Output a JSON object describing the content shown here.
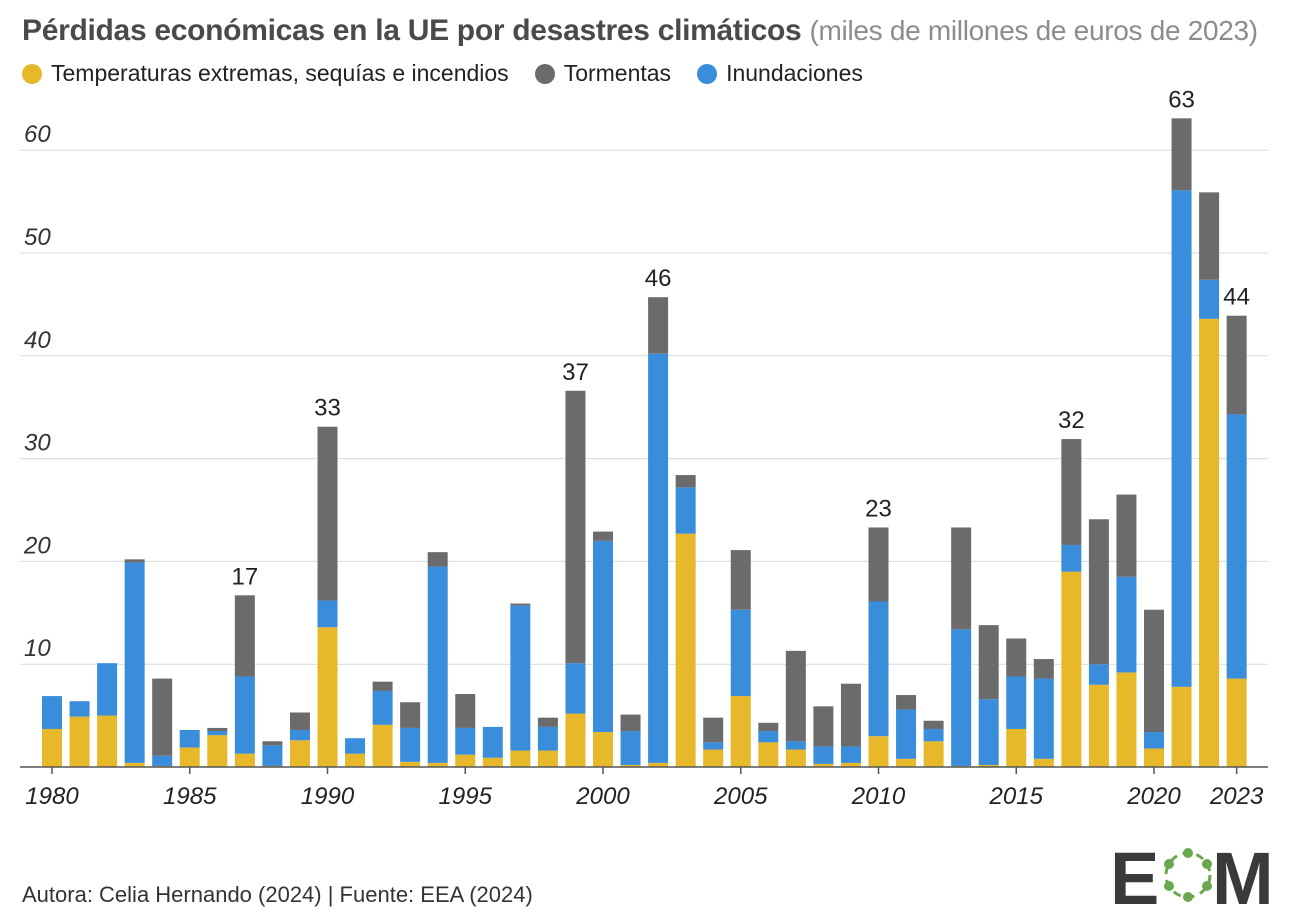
{
  "title": "Pérdidas económicas en la UE por desastres climáticos",
  "subtitle": "(miles de millones de euros de 2023)",
  "legend": [
    {
      "label": "Temperaturas extremas, sequías e incendios",
      "color": "#e6b82a"
    },
    {
      "label": "Tormentas",
      "color": "#6b6b6b"
    },
    {
      "label": "Inundaciones",
      "color": "#3a8ddb"
    }
  ],
  "footer": "Autora: Celia Hernando (2024) | Fuente: EEA (2024)",
  "logo": {
    "text": "EOM",
    "left": "E",
    "right": "M"
  },
  "chart_data": {
    "type": "bar",
    "stacked": true,
    "title": "Pérdidas económicas en la UE por desastres climáticos",
    "ylabel": "miles de millones de euros de 2023",
    "ylim": [
      0,
      63
    ],
    "yticks": [
      10,
      20,
      30,
      40,
      50,
      60
    ],
    "xtick_labels": [
      "1980",
      "1985",
      "1990",
      "1995",
      "2000",
      "2005",
      "2010",
      "2015",
      "2020",
      "2023"
    ],
    "grid": true,
    "legend_position": "top",
    "categories": [
      1980,
      1981,
      1982,
      1983,
      1984,
      1985,
      1986,
      1987,
      1988,
      1989,
      1990,
      1991,
      1992,
      1993,
      1994,
      1995,
      1996,
      1997,
      1998,
      1999,
      2000,
      2001,
      2002,
      2003,
      2004,
      2005,
      2006,
      2007,
      2008,
      2009,
      2010,
      2011,
      2012,
      2013,
      2014,
      2015,
      2016,
      2017,
      2018,
      2019,
      2020,
      2021,
      2022,
      2023
    ],
    "series": [
      {
        "name": "Temperaturas extremas, sequías e incendios",
        "color": "#e6b82a",
        "values": [
          3.7,
          4.9,
          5.0,
          0.4,
          0.1,
          1.9,
          3.1,
          1.3,
          0.1,
          2.6,
          13.6,
          1.3,
          4.1,
          0.5,
          0.4,
          1.2,
          0.9,
          1.6,
          1.6,
          5.2,
          3.4,
          0.2,
          0.4,
          22.7,
          1.7,
          6.9,
          2.4,
          1.7,
          0.3,
          0.4,
          3.0,
          0.8,
          2.5,
          0.1,
          0.2,
          3.7,
          0.8,
          19.0,
          8.0,
          9.2,
          1.8,
          7.8,
          43.6,
          8.6
        ]
      },
      {
        "name": "Inundaciones",
        "color": "#3a8ddb",
        "values": [
          3.2,
          1.5,
          5.1,
          19.5,
          1.0,
          1.7,
          0.4,
          7.5,
          2.0,
          1.0,
          2.6,
          1.5,
          3.3,
          3.3,
          19.1,
          2.6,
          3.0,
          14.1,
          2.3,
          4.9,
          18.6,
          3.3,
          39.8,
          4.5,
          0.7,
          8.4,
          1.1,
          0.8,
          1.7,
          1.6,
          13.1,
          4.8,
          1.2,
          13.3,
          6.4,
          5.1,
          7.8,
          2.6,
          2.0,
          9.3,
          1.6,
          48.3,
          3.8,
          25.7
        ]
      },
      {
        "name": "Tormentas",
        "color": "#6b6b6b",
        "values": [
          0,
          0,
          0,
          0.3,
          7.5,
          0,
          0.3,
          7.9,
          0.4,
          1.7,
          16.9,
          0,
          0.9,
          2.5,
          1.4,
          3.3,
          0,
          0.2,
          0.9,
          26.5,
          0.9,
          1.6,
          5.5,
          1.2,
          2.4,
          5.8,
          0.8,
          8.8,
          3.9,
          6.1,
          7.2,
          1.4,
          0.8,
          9.9,
          7.2,
          3.7,
          1.9,
          10.3,
          14.1,
          8.0,
          11.9,
          7.0,
          8.5,
          9.6
        ]
      }
    ],
    "total_labels": [
      {
        "year": 1987,
        "text": "17"
      },
      {
        "year": 1990,
        "text": "33"
      },
      {
        "year": 1999,
        "text": "37"
      },
      {
        "year": 2002,
        "text": "46"
      },
      {
        "year": 2010,
        "text": "23"
      },
      {
        "year": 2017,
        "text": "32"
      },
      {
        "year": 2021,
        "text": "63"
      },
      {
        "year": 2023,
        "text": "44"
      }
    ]
  }
}
